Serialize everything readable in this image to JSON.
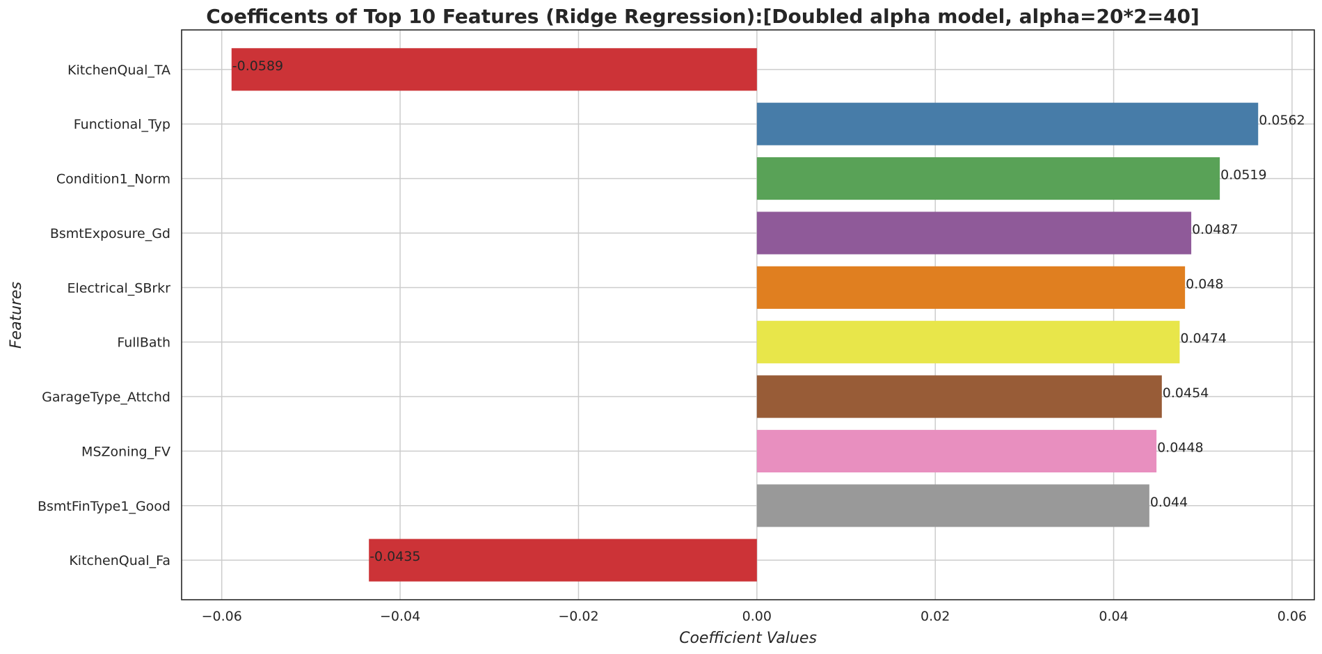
{
  "chart_data": {
    "type": "bar",
    "orientation": "horizontal",
    "title": "Coefficents of Top 10 Features (Ridge Regression):[Doubled alpha model, alpha=20*2=40]",
    "xlabel": "Coefficient Values",
    "ylabel": "Features",
    "xlim": [
      -0.0645,
      0.0625
    ],
    "xticks": [
      -0.06,
      -0.04,
      -0.02,
      0.0,
      0.02,
      0.04,
      0.06
    ],
    "xtick_labels": [
      "−0.06",
      "−0.04",
      "−0.02",
      "0.00",
      "0.02",
      "0.04",
      "0.06"
    ],
    "grid": true,
    "categories": [
      "KitchenQual_TA",
      "Functional_Typ",
      "Condition1_Norm",
      "BsmtExposure_Gd",
      "Electrical_SBrkr",
      "FullBath",
      "GarageType_Attchd",
      "MSZoning_FV",
      "BsmtFinType1_Good",
      "KitchenQual_Fa"
    ],
    "values": [
      -0.0589,
      0.0562,
      0.0519,
      0.0487,
      0.048,
      0.0474,
      0.0454,
      0.0448,
      0.044,
      -0.0435
    ],
    "value_labels": [
      "-0.0589",
      "0.0562",
      "0.0519",
      "0.0487",
      "0.048",
      "0.0474",
      "0.0454",
      "0.0448",
      "0.044",
      "-0.0435"
    ],
    "colors": [
      "#cc3337",
      "#477ca8",
      "#59a257",
      "#8f5a99",
      "#e07f20",
      "#e8e64a",
      "#985c37",
      "#e88fbf",
      "#999999",
      "#cc3337"
    ]
  }
}
